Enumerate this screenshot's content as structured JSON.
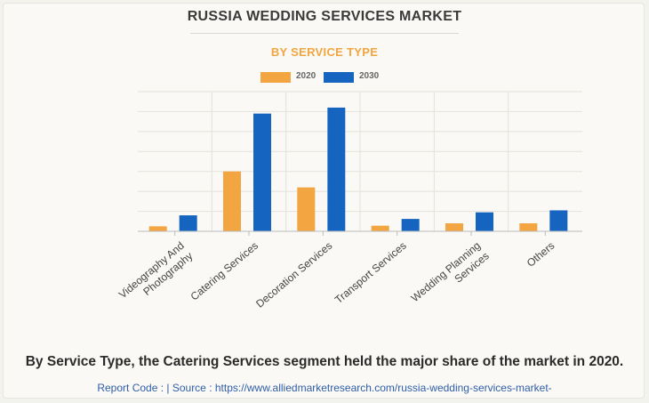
{
  "title": "RUSSIA WEDDING SERVICES MARKET",
  "subtitle": "BY SERVICE TYPE",
  "colors": {
    "2020": "#f2a541",
    "2030": "#1565c0"
  },
  "chart_data": {
    "type": "bar",
    "categories": [
      [
        "Videography And",
        "Photography"
      ],
      [
        "Catering Services"
      ],
      [
        "Decoration Services"
      ],
      [
        "Transport Services"
      ],
      [
        "Wedding Planning",
        "Services"
      ],
      [
        "Others"
      ]
    ],
    "series": [
      {
        "name": "2020",
        "values": [
          0.25,
          3.0,
          2.2,
          0.28,
          0.4,
          0.4
        ]
      },
      {
        "name": "2030",
        "values": [
          0.8,
          5.9,
          6.2,
          0.62,
          0.95,
          1.05
        ]
      }
    ],
    "ylim": [
      0,
      7
    ],
    "grid": true,
    "legend": "top-center"
  },
  "caption": "By Service Type, the Catering Services segment held the major share of the market in 2020.",
  "source": "Report Code :  |  Source : https://www.alliedmarketresearch.com/russia-wedding-services-market-"
}
